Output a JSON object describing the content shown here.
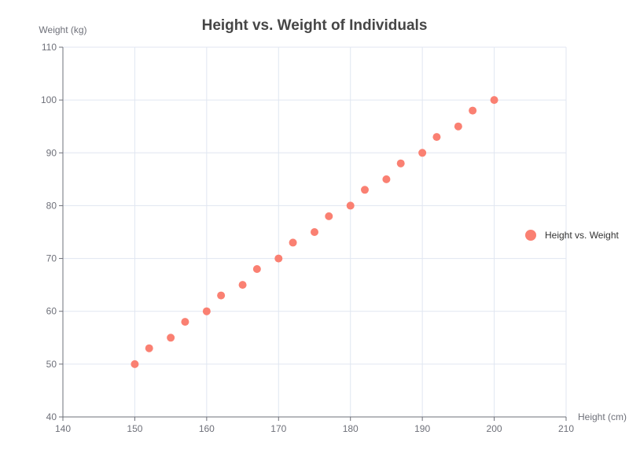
{
  "chart_data": {
    "type": "scatter",
    "title": "Height vs. Weight of Individuals",
    "xlabel": "Height (cm)",
    "ylabel": "Weight (kg)",
    "xlim": [
      140,
      210
    ],
    "ylim": [
      40,
      110
    ],
    "x_ticks": [
      140,
      150,
      160,
      170,
      180,
      190,
      200,
      210
    ],
    "y_ticks": [
      40,
      50,
      60,
      70,
      80,
      90,
      100,
      110
    ],
    "grid": true,
    "legend_position": "right",
    "series": [
      {
        "name": "Height vs. Weight",
        "color": "#fa8072",
        "points": [
          {
            "x": 150,
            "y": 50
          },
          {
            "x": 152,
            "y": 53
          },
          {
            "x": 155,
            "y": 55
          },
          {
            "x": 157,
            "y": 58
          },
          {
            "x": 160,
            "y": 60
          },
          {
            "x": 162,
            "y": 63
          },
          {
            "x": 165,
            "y": 65
          },
          {
            "x": 167,
            "y": 68
          },
          {
            "x": 170,
            "y": 70
          },
          {
            "x": 172,
            "y": 73
          },
          {
            "x": 175,
            "y": 75
          },
          {
            "x": 177,
            "y": 78
          },
          {
            "x": 180,
            "y": 80
          },
          {
            "x": 182,
            "y": 83
          },
          {
            "x": 185,
            "y": 85
          },
          {
            "x": 187,
            "y": 88
          },
          {
            "x": 190,
            "y": 90
          },
          {
            "x": 192,
            "y": 93
          },
          {
            "x": 195,
            "y": 95
          },
          {
            "x": 197,
            "y": 98
          },
          {
            "x": 200,
            "y": 100
          }
        ]
      }
    ]
  }
}
